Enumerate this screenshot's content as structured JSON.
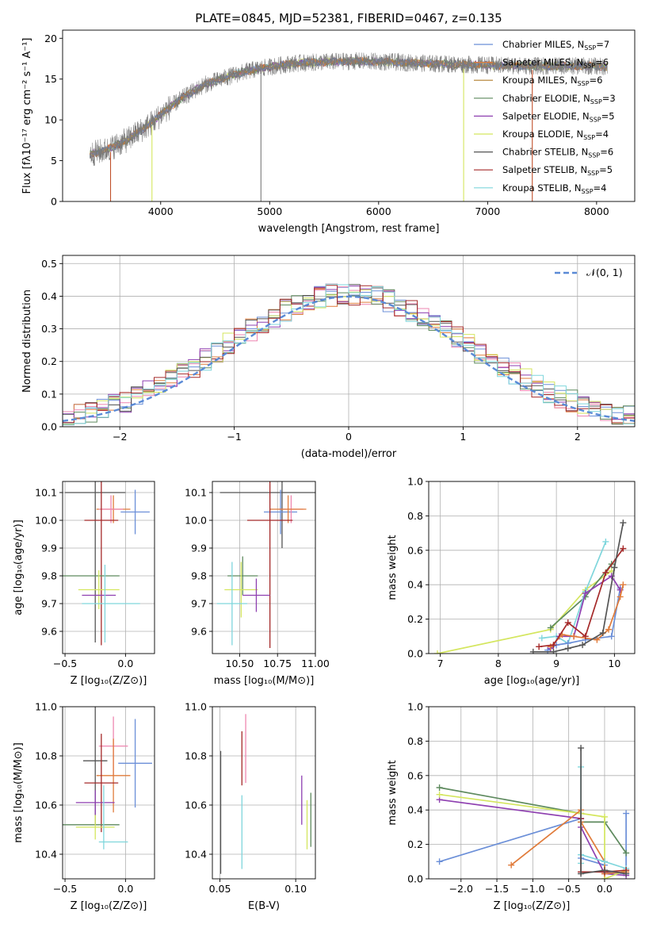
{
  "figure": {
    "title": "PLATE=0845, MJD=52381, FIBERID=0467, z=0.135"
  },
  "colors": {
    "chabrier_miles": "#6b8fd8",
    "salpeter_miles": "#e07b3a",
    "kroupa_miles": "#b07c2a",
    "chabrier_elodie": "#5e8a5e",
    "salpeter_elodie": "#8e3fb0",
    "kroupa_elodie": "#d4e65e",
    "chabrier_stelib": "#555555",
    "salpeter_stelib": "#a52a2a",
    "kroupa_stelib": "#7fd6dc",
    "pink": "#ee86b0",
    "gaussian": "#5a8ad6"
  },
  "chart_data": [
    {
      "type": "line",
      "title": "PLATE=0845, MJD=52381, FIBERID=0467, z=0.135",
      "xlabel": "wavelength [Angstrom, rest frame]",
      "ylabel": "Flux [fλ10⁻¹⁷ erg cm⁻² s⁻¹ A⁻¹]",
      "xlim": [
        3100,
        8350
      ],
      "ylim": [
        0,
        21
      ],
      "xticks": [
        4000,
        5000,
        6000,
        7000,
        8000
      ],
      "yticks": [
        0,
        5,
        10,
        15,
        20
      ],
      "legend_loc": "upper right",
      "series": [
        {
          "name": "Chabrier MILES, N_SSP=7",
          "color": "#6b8fd8"
        },
        {
          "name": "Salpeter MILES, N_SSP=6",
          "color": "#e07b3a"
        },
        {
          "name": "Kroupa MILES, N_SSP=6",
          "color": "#b07c2a"
        },
        {
          "name": "Chabrier ELODIE, N_SSP=3",
          "color": "#5e8a5e"
        },
        {
          "name": "Salpeter ELODIE, N_SSP=5",
          "color": "#8e3fb0"
        },
        {
          "name": "Kroupa ELODIE, N_SSP=4",
          "color": "#d4e65e"
        },
        {
          "name": "Chabrier STELIB, N_SSP=6",
          "color": "#555555"
        },
        {
          "name": "Salpeter STELIB, N_SSP=5",
          "color": "#a52a2a"
        },
        {
          "name": "Kroupa STELIB, N_SSP=4",
          "color": "#7fd6dc"
        }
      ],
      "continuum": {
        "x": [
          3350,
          3500,
          3700,
          3850,
          3950,
          4050,
          4200,
          4400,
          4600,
          4800,
          5000,
          5200,
          5500,
          5800,
          6100,
          6500,
          7000,
          7500,
          8000,
          8100
        ],
        "y": [
          5.8,
          6.3,
          7.6,
          9.0,
          10.0,
          11.2,
          12.7,
          14.3,
          15.2,
          16.0,
          16.5,
          16.9,
          17.1,
          17.2,
          17.1,
          16.9,
          16.7,
          16.6,
          16.6,
          16.5
        ]
      },
      "dropouts": [
        3540,
        3920,
        4920,
        6780,
        7410
      ]
    },
    {
      "type": "bar",
      "title": "",
      "xlabel": "(data-model)/error",
      "ylabel": "Normed distribution",
      "xlim": [
        -2.5,
        2.5
      ],
      "ylim": [
        0,
        0.525
      ],
      "xticks": [
        -2,
        -1,
        0,
        1,
        2
      ],
      "yticks": [
        0.0,
        0.1,
        0.2,
        0.3,
        0.4,
        0.5
      ],
      "grid": true,
      "legend_loc": "upper right",
      "legend": [
        "𝒩(0, 1)"
      ],
      "bin_width": 0.1,
      "bin_start": -2.5,
      "histogram_series": 9,
      "gaussian": {
        "mean": 0,
        "sigma": 1
      }
    },
    {
      "type": "scatter",
      "title": "",
      "xlabel": "Z [log₁₀(Z/Z⊙)]",
      "ylabel": "age  [log₁₀(age/yr)]",
      "xlim": [
        -0.52,
        0.24
      ],
      "ylim": [
        9.52,
        10.14
      ],
      "xticks": [
        -0.5,
        0.0
      ],
      "yticks": [
        9.6,
        9.7,
        9.8,
        9.9,
        10.0,
        10.1
      ],
      "points": [
        {
          "x": 0.08,
          "y": 10.03,
          "xerr": 0.12,
          "yerr": 0.08,
          "color": "#6b8fd8"
        },
        {
          "x": -0.1,
          "y": 10.04,
          "xerr": 0.14,
          "yerr": 0.05,
          "color": "#e07b3a"
        },
        {
          "x": -0.12,
          "y": 10.04,
          "xerr": 0.1,
          "yerr": 0.05,
          "color": "#ee86b0"
        },
        {
          "x": -0.25,
          "y": 10.1,
          "xerr": 0.25,
          "yerr": 0.54,
          "color": "#555555"
        },
        {
          "x": -0.2,
          "y": 10.0,
          "xerr": 0.14,
          "yerr": 0.45,
          "color": "#a52a2a"
        },
        {
          "x": -0.3,
          "y": 9.8,
          "xerr": 0.25,
          "yerr": 0.0,
          "color": "#5e8a5e"
        },
        {
          "x": -0.22,
          "y": 9.75,
          "xerr": 0.17,
          "yerr": 0.07,
          "color": "#d4e65e"
        },
        {
          "x": -0.22,
          "y": 9.73,
          "xerr": 0.14,
          "yerr": 0.0,
          "color": "#8e3fb0"
        },
        {
          "x": -0.12,
          "y": 9.7,
          "xerr": 0.24,
          "yerr": 0.0,
          "color": "#7fd6dc"
        },
        {
          "x": -0.17,
          "y": 9.7,
          "xerr": 0.0,
          "yerr": 0.14,
          "color": "#7fd6dc"
        }
      ]
    },
    {
      "type": "scatter",
      "title": "",
      "xlabel": "mass [log₁₀(M/M⊙)]",
      "ylabel": "",
      "xlim": [
        10.32,
        11.0
      ],
      "ylim": [
        9.52,
        10.14
      ],
      "xticks": [
        10.5,
        10.75,
        11.0
      ],
      "yticks": [
        9.6,
        9.7,
        9.8,
        9.9,
        10.0,
        10.1
      ],
      "points": [
        {
          "x": 10.78,
          "y": 10.1,
          "xerr": 0.41,
          "yerr": 0.2,
          "color": "#555555"
        },
        {
          "x": 10.77,
          "y": 10.03,
          "xerr": 0.11,
          "yerr": 0.08,
          "color": "#6b8fd8"
        },
        {
          "x": 10.84,
          "y": 10.04,
          "xerr": 0.08,
          "yerr": 0.05,
          "color": "#ee86b0"
        },
        {
          "x": 10.82,
          "y": 10.04,
          "xerr": 0.12,
          "yerr": 0.05,
          "color": "#e07b3a"
        },
        {
          "x": 10.7,
          "y": 10.0,
          "xerr": 0.15,
          "yerr": 0.46,
          "color": "#a52a2a"
        },
        {
          "x": 10.52,
          "y": 9.8,
          "xerr": 0.1,
          "yerr": 0.07,
          "color": "#5e8a5e"
        },
        {
          "x": 10.51,
          "y": 9.75,
          "xerr": 0.11,
          "yerr": 0.1,
          "color": "#d4e65e"
        },
        {
          "x": 10.61,
          "y": 9.73,
          "xerr": 0.09,
          "yerr": 0.06,
          "color": "#8e3fb0"
        },
        {
          "x": 10.45,
          "y": 9.7,
          "xerr": 0.1,
          "yerr": 0.15,
          "color": "#7fd6dc"
        }
      ]
    },
    {
      "type": "line",
      "title": "",
      "xlabel": "age  [log₁₀(age/yr)]",
      "ylabel": "mass weight",
      "xlim": [
        6.8,
        10.35
      ],
      "ylim": [
        0,
        1.0
      ],
      "xticks": [
        7,
        8,
        9,
        10
      ],
      "yticks": [
        0.0,
        0.2,
        0.4,
        0.6,
        0.8,
        1.0
      ],
      "grid": true,
      "series": [
        {
          "color": "#d4e65e",
          "x": [
            6.95,
            8.9,
            9.5,
            9.95
          ],
          "y": [
            0.0,
            0.14,
            0.37,
            0.48
          ]
        },
        {
          "color": "#5e8a5e",
          "x": [
            8.9,
            9.5,
            9.95
          ],
          "y": [
            0.15,
            0.33,
            0.52
          ]
        },
        {
          "color": "#7fd6dc",
          "x": [
            8.75,
            9.0,
            9.2,
            9.5,
            9.85
          ],
          "y": [
            0.09,
            0.1,
            0.06,
            0.36,
            0.65
          ]
        },
        {
          "color": "#6b8fd8",
          "x": [
            8.85,
            9.0,
            9.2,
            9.5,
            9.95,
            10.1
          ],
          "y": [
            0.02,
            0.05,
            0.06,
            0.08,
            0.1,
            0.38
          ]
        },
        {
          "color": "#8e3fb0",
          "x": [
            8.9,
            9.05,
            9.3,
            9.5,
            9.95,
            10.1
          ],
          "y": [
            0.03,
            0.1,
            0.1,
            0.35,
            0.45,
            0.37
          ]
        },
        {
          "color": "#e07b3a",
          "x": [
            8.9,
            9.1,
            9.3,
            9.7,
            9.9,
            10.1,
            10.15
          ],
          "y": [
            0.04,
            0.11,
            0.1,
            0.08,
            0.14,
            0.33,
            0.4
          ]
        },
        {
          "color": "#a52a2a",
          "x": [
            8.7,
            8.95,
            9.2,
            9.5,
            9.85,
            10.15
          ],
          "y": [
            0.04,
            0.05,
            0.18,
            0.1,
            0.47,
            0.61
          ]
        },
        {
          "color": "#555555",
          "x": [
            8.6,
            8.95,
            9.2,
            9.45,
            9.8,
            10.0,
            10.15
          ],
          "y": [
            0.01,
            0.01,
            0.03,
            0.05,
            0.12,
            0.5,
            0.76
          ]
        }
      ]
    },
    {
      "type": "scatter",
      "title": "",
      "xlabel": "Z [log₁₀(Z/Z⊙)]",
      "ylabel": "mass [log₁₀(M/M⊙)]",
      "xlim": [
        -0.52,
        0.24
      ],
      "ylim": [
        10.3,
        11.0
      ],
      "xticks": [
        -0.5,
        0.0
      ],
      "yticks": [
        10.4,
        10.6,
        10.8,
        11.0
      ],
      "points": [
        {
          "x": -0.1,
          "y": 10.84,
          "xerr": 0.12,
          "yerr": 0.12,
          "color": "#ee86b0"
        },
        {
          "x": 0.08,
          "y": 10.77,
          "xerr": 0.14,
          "yerr": 0.18,
          "color": "#6b8fd8"
        },
        {
          "x": -0.25,
          "y": 10.78,
          "xerr": 0.1,
          "yerr": 0.26,
          "color": "#555555"
        },
        {
          "x": -0.1,
          "y": 10.72,
          "xerr": 0.14,
          "yerr": 0.15,
          "color": "#e07b3a"
        },
        {
          "x": -0.2,
          "y": 10.69,
          "xerr": 0.14,
          "yerr": 0.2,
          "color": "#a52a2a"
        },
        {
          "x": -0.3,
          "y": 10.52,
          "xerr": 0.25,
          "yerr": 0.0,
          "color": "#5e8a5e"
        },
        {
          "x": -0.25,
          "y": 10.51,
          "xerr": 0.16,
          "yerr": 0.05,
          "color": "#d4e65e"
        },
        {
          "x": -0.25,
          "y": 10.61,
          "xerr": 0.16,
          "yerr": 0.05,
          "color": "#8e3fb0"
        },
        {
          "x": -0.1,
          "y": 10.45,
          "xerr": 0.12,
          "yerr": 0.0,
          "color": "#7fd6dc"
        },
        {
          "x": -0.18,
          "y": 10.55,
          "xerr": 0.0,
          "yerr": 0.13,
          "color": "#7fd6dc"
        }
      ]
    },
    {
      "type": "scatter",
      "title": "",
      "xlabel": "E(B-V)",
      "ylabel": "",
      "xlim": [
        0.045,
        0.113
      ],
      "ylim": [
        10.3,
        11.0
      ],
      "xticks": [
        0.05,
        0.1
      ],
      "yticks": [
        10.4,
        10.6,
        10.8,
        11.0
      ],
      "points": [
        {
          "x": 0.0505,
          "y": 10.57,
          "yerr": 0.25,
          "color": "#555555"
        },
        {
          "x": 0.0645,
          "y": 10.79,
          "yerr": 0.11,
          "color": "#a52a2a"
        },
        {
          "x": 0.067,
          "y": 10.83,
          "yerr": 0.14,
          "color": "#ee86b0"
        },
        {
          "x": 0.0645,
          "y": 10.49,
          "yerr": 0.15,
          "color": "#7fd6dc"
        },
        {
          "x": 0.104,
          "y": 10.62,
          "yerr": 0.1,
          "color": "#8e3fb0"
        },
        {
          "x": 0.1075,
          "y": 10.52,
          "yerr": 0.1,
          "color": "#d4e65e"
        },
        {
          "x": 0.11,
          "y": 10.54,
          "yerr": 0.11,
          "color": "#5e8a5e"
        }
      ]
    },
    {
      "type": "line",
      "title": "",
      "xlabel": "Z [log₁₀(Z/Z⊙)]",
      "ylabel": "mass weight",
      "xlim": [
        -2.45,
        0.42
      ],
      "ylim": [
        0,
        1.0
      ],
      "xticks": [
        -2.0,
        -1.5,
        -1.0,
        -0.5,
        0.0
      ],
      "yticks": [
        0.0,
        0.2,
        0.4,
        0.6,
        0.8,
        1.0
      ],
      "grid": true,
      "series": [
        {
          "color": "#6b8fd8",
          "x": [
            -2.3,
            -0.33,
            -0.33,
            0.0,
            0.0,
            0.3,
            0.3
          ],
          "y": [
            0.1,
            0.35,
            0.12,
            0.08,
            0.04,
            0.03,
            0.38
          ]
        },
        {
          "color": "#5e8a5e",
          "x": [
            -2.3,
            -0.33,
            -0.33,
            0.0,
            0.3
          ],
          "y": [
            0.53,
            0.38,
            0.33,
            0.33,
            0.15
          ]
        },
        {
          "color": "#8e3fb0",
          "x": [
            -2.3,
            -0.33,
            -0.33,
            0.0,
            0.3
          ],
          "y": [
            0.46,
            0.35,
            0.3,
            0.03,
            0.02
          ]
        },
        {
          "color": "#d4e65e",
          "x": [
            -2.3,
            -0.33,
            0.0,
            0.0,
            0.3
          ],
          "y": [
            0.49,
            0.38,
            0.36,
            0.0,
            0.05
          ]
        },
        {
          "color": "#e07b3a",
          "x": [
            -1.3,
            -0.33,
            -0.33,
            0.0,
            0.0,
            0.3
          ],
          "y": [
            0.08,
            0.4,
            0.33,
            0.1,
            0.03,
            0.04
          ]
        },
        {
          "color": "#7fd6dc",
          "x": [
            -0.33,
            -0.33,
            -0.33,
            0.0,
            0.3
          ],
          "y": [
            0.65,
            0.09,
            0.14,
            0.1,
            0.06
          ]
        },
        {
          "color": "#a52a2a",
          "x": [
            -0.33,
            -0.33,
            0.0,
            0.3
          ],
          "y": [
            0.35,
            0.04,
            0.04,
            0.05
          ]
        },
        {
          "color": "#555555",
          "x": [
            -0.33,
            -0.33,
            0.0,
            0.3
          ],
          "y": [
            0.76,
            0.03,
            0.05,
            0.03
          ]
        }
      ]
    }
  ]
}
